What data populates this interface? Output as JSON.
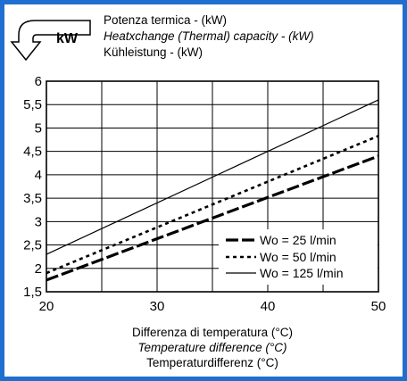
{
  "chart_data": {
    "type": "line",
    "badge": "kW",
    "title_lines": [
      "Potenza termica - (kW)",
      "Heatxchange (Thermal) capacity - (kW)",
      "Kühleistung - (kW)"
    ],
    "xlabel_lines": [
      "Differenza di temperatura (°C)",
      "Temperature difference (°C)",
      "Temperaturdifferenz (°C)"
    ],
    "xlim": [
      20,
      50
    ],
    "ylim": [
      1.5,
      6
    ],
    "x_ticks": [
      20,
      30,
      40,
      50
    ],
    "y_ticks": [
      1.5,
      2,
      2.5,
      3,
      3.5,
      4,
      4.5,
      5,
      5.5,
      6
    ],
    "x_tick_labels": [
      "20",
      "30",
      "40",
      "50"
    ],
    "y_tick_labels": [
      "1,5",
      "2",
      "2,5",
      "3",
      "3,5",
      "4",
      "4,5",
      "5",
      "5,5",
      "6"
    ],
    "grid": true,
    "legend_position": "bottom-right",
    "series": [
      {
        "name": "Wo = 25 l/min",
        "style": "dashed-long",
        "x": [
          20,
          50
        ],
        "y": [
          1.75,
          4.4
        ]
      },
      {
        "name": "Wo = 50 l/min",
        "style": "dotted",
        "x": [
          20,
          50
        ],
        "y": [
          1.9,
          4.83
        ]
      },
      {
        "name": "Wo = 125 l/min",
        "style": "solid-thin",
        "x": [
          20,
          50
        ],
        "y": [
          2.3,
          5.6
        ]
      }
    ]
  }
}
